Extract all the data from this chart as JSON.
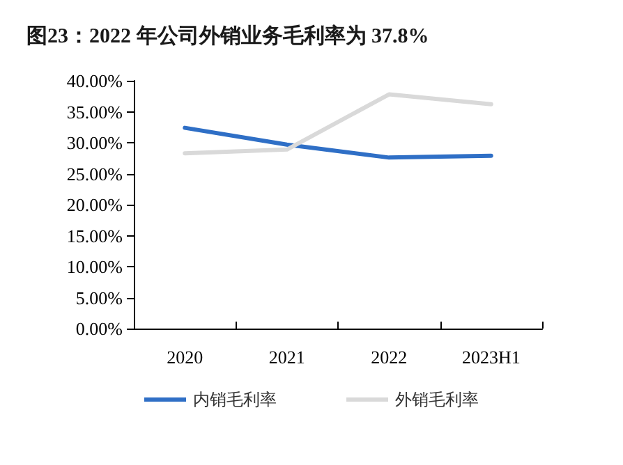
{
  "chart_data": {
    "type": "line",
    "title": "图23：2022 年公司外销业务毛利率为 37.8%",
    "categories": [
      "2020",
      "2021",
      "2022",
      "2023H1"
    ],
    "series": [
      {
        "name": "内销毛利率",
        "color": "#2f6fc6",
        "values": [
          32.4,
          29.7,
          27.6,
          27.9
        ]
      },
      {
        "name": "外销毛利率",
        "color": "#d9d9d9",
        "values": [
          28.3,
          28.9,
          37.8,
          36.2
        ]
      }
    ],
    "ylim": [
      0,
      40
    ],
    "yticks": [
      {
        "value": 0,
        "label": "0.00%"
      },
      {
        "value": 5,
        "label": "5.00%"
      },
      {
        "value": 10,
        "label": "10.00%"
      },
      {
        "value": 15,
        "label": "15.00%"
      },
      {
        "value": 20,
        "label": "20.00%"
      },
      {
        "value": 25,
        "label": "25.00%"
      },
      {
        "value": 30,
        "label": "30.00%"
      },
      {
        "value": 35,
        "label": "35.00%"
      },
      {
        "value": 40,
        "label": "40.00%"
      }
    ],
    "grid": false,
    "legend": "bottom",
    "marker": "none",
    "line_style": "solid"
  }
}
